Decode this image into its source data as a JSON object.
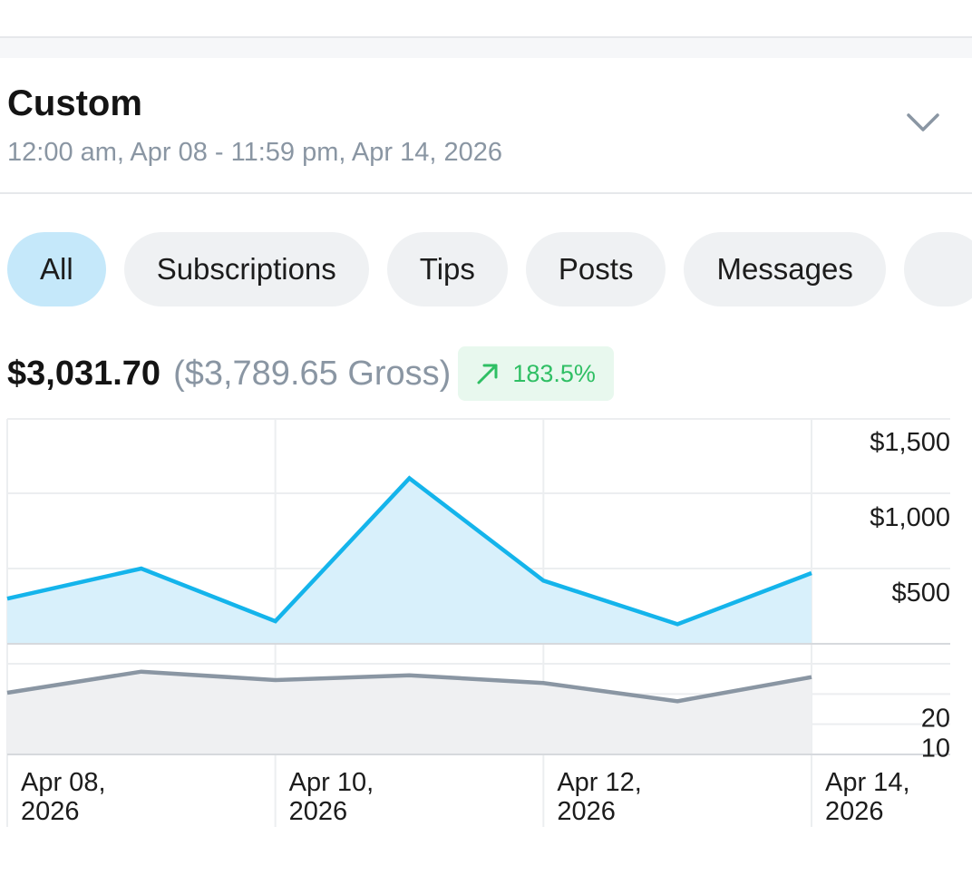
{
  "range": {
    "title": "Custom",
    "subtitle": "12:00 am, Apr 08 - 11:59 pm, Apr 14, 2026"
  },
  "filters": [
    "All",
    "Subscriptions",
    "Tips",
    "Posts",
    "Messages"
  ],
  "summary": {
    "net": "$3,031.70",
    "gross": "($3,789.65 Gross)",
    "change": "183.5%",
    "change_color": "#2fbf64"
  },
  "chart_data": [
    {
      "type": "area",
      "x": [
        "Apr 08, 2026",
        "Apr 09, 2026",
        "Apr 10, 2026",
        "Apr 11, 2026",
        "Apr 12, 2026",
        "Apr 13, 2026",
        "Apr 14, 2026"
      ],
      "values": [
        300,
        500,
        150,
        1100,
        420,
        130,
        470
      ],
      "ylim": [
        0,
        1500
      ],
      "yticks": [
        "$1,500",
        "$1,000",
        "$500"
      ],
      "color": "#14b4eb",
      "fill": "#d8f0fb"
    },
    {
      "type": "area",
      "x": [
        "Apr 08, 2026",
        "Apr 09, 2026",
        "Apr 10, 2026",
        "Apr 11, 2026",
        "Apr 12, 2026",
        "Apr 13, 2026",
        "Apr 14, 2026"
      ],
      "values": [
        20.4,
        27.4,
        24.6,
        26.2,
        23.6,
        17.6,
        25.6
      ],
      "ylim": [
        0,
        30
      ],
      "yticks": [
        "20",
        "10"
      ],
      "color": "#8a96a3",
      "fill": "#eff0f2"
    }
  ],
  "x_tick_labels": [
    [
      "Apr 08,",
      "2026"
    ],
    [
      "Apr 10,",
      "2026"
    ],
    [
      "Apr 12,",
      "2026"
    ],
    [
      "Apr 14,",
      "2026"
    ]
  ]
}
